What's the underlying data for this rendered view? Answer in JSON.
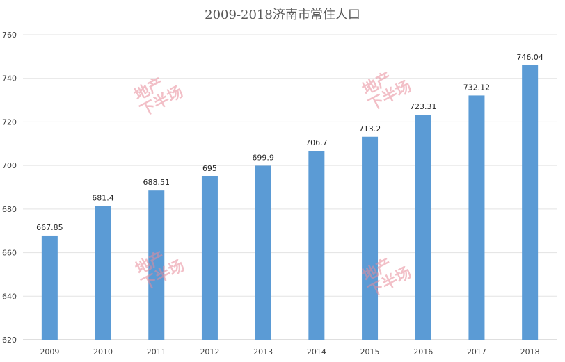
{
  "chart_data": {
    "type": "bar",
    "title": "2009-2018济南市常住人口",
    "xlabel": "",
    "ylabel": "",
    "categories": [
      "2009",
      "2010",
      "2011",
      "2012",
      "2013",
      "2014",
      "2015",
      "2016",
      "2017",
      "2018"
    ],
    "values": [
      667.85,
      681.4,
      688.51,
      695,
      699.9,
      706.7,
      713.2,
      723.31,
      732.12,
      746.04
    ],
    "data_labels": [
      "667.85",
      "681.4",
      "688.51",
      "695",
      "699.9",
      "706.7",
      "713.2",
      "723.31",
      "732.12",
      "746.04"
    ],
    "ylim": [
      620,
      760
    ],
    "y_ticks": [
      "620",
      "640",
      "660",
      "680",
      "700",
      "720",
      "740",
      "760"
    ],
    "grid": true,
    "legend": "none",
    "bar_color": "#5b9bd5"
  },
  "watermark": {
    "line1": "地产",
    "line2": "下半场"
  }
}
